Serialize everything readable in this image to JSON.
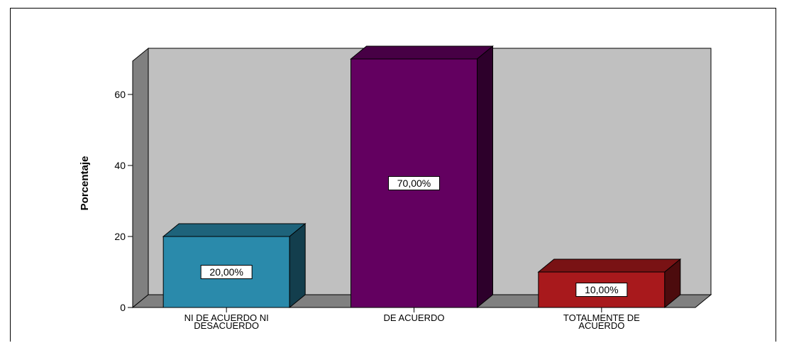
{
  "chart_data": {
    "type": "bar",
    "title": "",
    "xlabel": "",
    "ylabel": "Porcentaje",
    "ylim": [
      0,
      70
    ],
    "yticks": [
      0,
      20,
      40,
      60
    ],
    "categories": [
      [
        "NI DE ACUERDO NI",
        "DESACUERDO"
      ],
      [
        "DE ACUERDO"
      ],
      [
        "TOTALMENTE DE",
        "ACUERDO"
      ]
    ],
    "values": [
      20,
      70,
      10
    ],
    "data_labels": [
      "20,00%",
      "70,00%",
      "10,00%"
    ],
    "colors": [
      "#2a8aab",
      "#630060",
      "#a8191c"
    ],
    "grid": false,
    "legend": "none",
    "style": "3d",
    "wall_color": "#c0c0c0",
    "floor_color": "#808080"
  }
}
